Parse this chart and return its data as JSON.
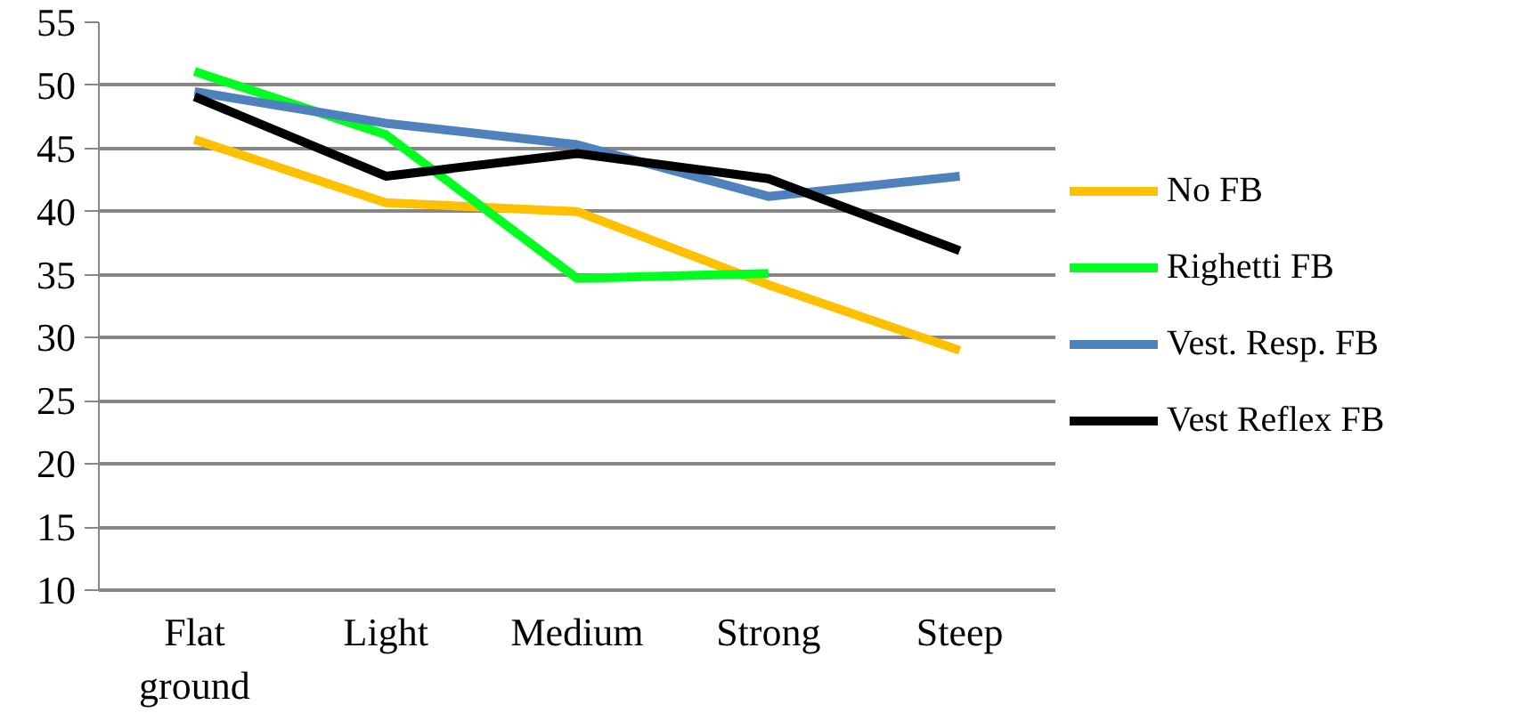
{
  "chart_data": {
    "type": "line",
    "categories": [
      "Flat ground",
      "Light",
      "Medium",
      "Strong",
      "Steep"
    ],
    "series": [
      {
        "name": "No FB",
        "color": "#ffc000",
        "values": [
          45.7,
          40.7,
          40.0,
          34.2,
          29.0
        ]
      },
      {
        "name": "Righetti FB",
        "color": "#00ff21",
        "values": [
          51.1,
          46.1,
          34.7,
          35.1,
          null
        ]
      },
      {
        "name": "Vest. Resp. FB",
        "color": "#4f81bd",
        "values": [
          49.5,
          47.0,
          45.3,
          41.2,
          42.8
        ]
      },
      {
        "name": "Vest Reflex FB",
        "color": "#000000",
        "values": [
          49.1,
          42.8,
          44.6,
          42.6,
          36.9
        ]
      }
    ],
    "ylim": [
      10,
      55
    ],
    "yticks": [
      10,
      15,
      20,
      25,
      30,
      35,
      40,
      45,
      50,
      55
    ],
    "grid": "y",
    "legend": "right",
    "marker": "none",
    "line_style": "solid"
  }
}
